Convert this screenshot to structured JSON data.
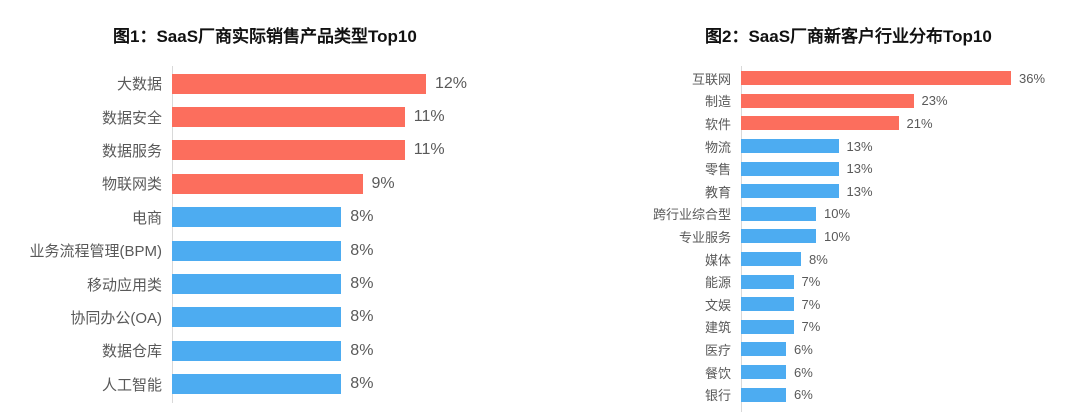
{
  "colors": {
    "red": "#FC6E5D",
    "blue": "#4DACF1",
    "label_text": "#595959",
    "axis_line": "#D9D9D9",
    "title_text": "#111111",
    "background": "#FFFFFF"
  },
  "chart_data": [
    {
      "type": "bar",
      "orientation": "horizontal",
      "title": "图1：SaaS厂商实际销售产品类型Top10",
      "xlim": [
        0,
        12
      ],
      "grid": false,
      "legend": false,
      "categories": [
        "大数据",
        "数据安全",
        "数据服务",
        "物联网类",
        "电商",
        "业务流程管理(BPM)",
        "移动应用类",
        "协同办公(OA)",
        "数据仓库",
        "人工智能"
      ],
      "values": [
        12,
        11,
        11,
        9,
        8,
        8,
        8,
        8,
        8,
        8
      ],
      "bars": [
        {
          "label": "大数据",
          "value": 12,
          "value_label": "12%",
          "color": "red"
        },
        {
          "label": "数据安全",
          "value": 11,
          "value_label": "11%",
          "color": "red"
        },
        {
          "label": "数据服务",
          "value": 11,
          "value_label": "11%",
          "color": "red"
        },
        {
          "label": "物联网类",
          "value": 9,
          "value_label": "9%",
          "color": "red"
        },
        {
          "label": "电商",
          "value": 8,
          "value_label": "8%",
          "color": "blue"
        },
        {
          "label": "业务流程管理(BPM)",
          "value": 8,
          "value_label": "8%",
          "color": "blue"
        },
        {
          "label": "移动应用类",
          "value": 8,
          "value_label": "8%",
          "color": "blue"
        },
        {
          "label": "协同办公(OA)",
          "value": 8,
          "value_label": "8%",
          "color": "blue"
        },
        {
          "label": "数据仓库",
          "value": 8,
          "value_label": "8%",
          "color": "blue"
        },
        {
          "label": "人工智能",
          "value": 8,
          "value_label": "8%",
          "color": "blue"
        }
      ]
    },
    {
      "type": "bar",
      "orientation": "horizontal",
      "title": "图2：SaaS厂商新客户行业分布Top10",
      "xlim": [
        0,
        36
      ],
      "grid": false,
      "legend": false,
      "categories": [
        "互联网",
        "制造",
        "软件",
        "物流",
        "零售",
        "教育",
        "跨行业综合型",
        "专业服务",
        "媒体",
        "能源",
        "文娱",
        "建筑",
        "医疗",
        "餐饮",
        "银行"
      ],
      "values": [
        36,
        23,
        21,
        13,
        13,
        13,
        10,
        10,
        8,
        7,
        7,
        7,
        6,
        6,
        6
      ],
      "bars": [
        {
          "label": "互联网",
          "value": 36,
          "value_label": "36%",
          "color": "red"
        },
        {
          "label": "制造",
          "value": 23,
          "value_label": "23%",
          "color": "red"
        },
        {
          "label": "软件",
          "value": 21,
          "value_label": "21%",
          "color": "red"
        },
        {
          "label": "物流",
          "value": 13,
          "value_label": "13%",
          "color": "blue"
        },
        {
          "label": "零售",
          "value": 13,
          "value_label": "13%",
          "color": "blue"
        },
        {
          "label": "教育",
          "value": 13,
          "value_label": "13%",
          "color": "blue"
        },
        {
          "label": "跨行业综合型",
          "value": 10,
          "value_label": "10%",
          "color": "blue"
        },
        {
          "label": "专业服务",
          "value": 10,
          "value_label": "10%",
          "color": "blue"
        },
        {
          "label": "媒体",
          "value": 8,
          "value_label": "8%",
          "color": "blue"
        },
        {
          "label": "能源",
          "value": 7,
          "value_label": "7%",
          "color": "blue"
        },
        {
          "label": "文娱",
          "value": 7,
          "value_label": "7%",
          "color": "blue"
        },
        {
          "label": "建筑",
          "value": 7,
          "value_label": "7%",
          "color": "blue"
        },
        {
          "label": "医疗",
          "value": 6,
          "value_label": "6%",
          "color": "blue"
        },
        {
          "label": "餐饮",
          "value": 6,
          "value_label": "6%",
          "color": "blue"
        },
        {
          "label": "银行",
          "value": 6,
          "value_label": "6%",
          "color": "blue"
        }
      ]
    }
  ]
}
